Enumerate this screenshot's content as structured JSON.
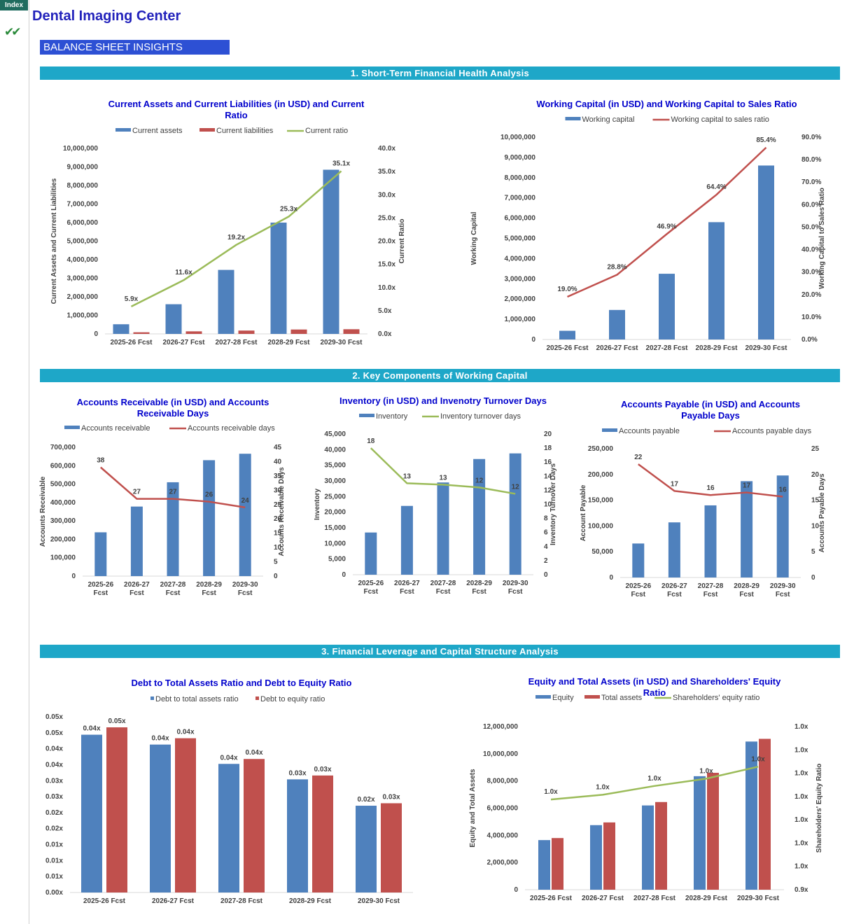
{
  "header": {
    "index_tab": "Index",
    "title": "Dental Imaging Center",
    "check_glyph": "✔✔",
    "section_label": "BALANCE SHEET INSIGHTS"
  },
  "sections": [
    "1. Short-Term Financial Health Analysis",
    "2. Key Components of Working Capital",
    "3. Financial Leverage and Capital Structure Analysis"
  ],
  "colors": {
    "blue": "#4f81bd",
    "red": "#c0504d",
    "green": "#9bbb59",
    "title": "#0000cc",
    "band": "#1ea7c8"
  },
  "chart_data": [
    {
      "id": "c1",
      "type": "bar",
      "title": [
        "Current Assets and Current Liabilities (in USD) and Current",
        "Ratio"
      ],
      "categories": [
        "2025-26 Fcst",
        "2026-27 Fcst",
        "2027-28 Fcst",
        "2028-29 Fcst",
        "2029-30 Fcst"
      ],
      "ylabel": "Current Assets and Current Liabilities",
      "y2label": "Current Ratio",
      "ylim": [
        0,
        10000000
      ],
      "yticks": [
        "0",
        "1,000,000",
        "2,000,000",
        "3,000,000",
        "4,000,000",
        "5,000,000",
        "6,000,000",
        "7,000,000",
        "8,000,000",
        "9,000,000",
        "10,000,000"
      ],
      "y2lim": [
        0,
        40
      ],
      "y2ticks": [
        "0.0x",
        "5.0x",
        "10.0x",
        "15.0x",
        "20.0x",
        "25.0x",
        "30.0x",
        "35.0x",
        "40.0x"
      ],
      "series": [
        {
          "name": "Current assets",
          "type": "bar",
          "axis": "y",
          "color": "#4f81bd",
          "values": [
            520000,
            1600000,
            3450000,
            6000000,
            8850000
          ]
        },
        {
          "name": "Current liabilities",
          "type": "bar",
          "axis": "y",
          "color": "#c0504d",
          "values": [
            88000,
            138000,
            180000,
            237000,
            252000
          ]
        },
        {
          "name": "Current ratio",
          "type": "line",
          "axis": "y2",
          "color": "#9bbb59",
          "values": [
            5.9,
            11.6,
            19.2,
            25.3,
            35.1
          ],
          "labels": [
            "5.9x",
            "11.6x",
            "19.2x",
            "25.3x",
            "35.1x"
          ]
        }
      ]
    },
    {
      "id": "c2",
      "type": "bar",
      "title": [
        "Working Capital (in USD) and Working Capital to Sales Ratio"
      ],
      "categories": [
        "2025-26 Fcst",
        "2026-27 Fcst",
        "2027-28 Fcst",
        "2028-29 Fcst",
        "2029-30 Fcst"
      ],
      "ylabel": "Working Capital",
      "y2label": "Working Capital to Sales Ratio",
      "ylim": [
        0,
        10000000
      ],
      "yticks": [
        "0",
        "1,000,000",
        "2,000,000",
        "3,000,000",
        "4,000,000",
        "5,000,000",
        "6,000,000",
        "7,000,000",
        "8,000,000",
        "9,000,000",
        "10,000,000"
      ],
      "y2lim": [
        0,
        90
      ],
      "y2ticks": [
        "0.0%",
        "10.0%",
        "20.0%",
        "30.0%",
        "40.0%",
        "50.0%",
        "60.0%",
        "70.0%",
        "80.0%",
        "90.0%"
      ],
      "series": [
        {
          "name": "Working capital",
          "type": "bar",
          "axis": "y",
          "color": "#4f81bd",
          "values": [
            430000,
            1460000,
            3250000,
            5800000,
            8600000
          ]
        },
        {
          "name": "Working capital to sales ratio",
          "type": "line",
          "axis": "y2",
          "color": "#c0504d",
          "values": [
            19.0,
            28.8,
            46.9,
            64.4,
            85.4
          ],
          "labels": [
            "19.0%",
            "28.8%",
            "46.9%",
            "64.4%",
            "85.4%"
          ]
        }
      ]
    },
    {
      "id": "c3",
      "type": "bar",
      "title": [
        "Accounts Receivable (in USD) and Accounts",
        "Receivable Days"
      ],
      "categories": [
        "2025-26 Fcst",
        "2026-27 Fcst",
        "2027-28 Fcst",
        "2028-29 Fcst",
        "2029-30 Fcst"
      ],
      "ylabel": "Accounts Receivable",
      "y2label": "Accounts Receivable Days",
      "ylim": [
        0,
        700000
      ],
      "yticks": [
        "0",
        "100,000",
        "200,000",
        "300,000",
        "400,000",
        "500,000",
        "600,000",
        "700,000"
      ],
      "y2lim": [
        0,
        45
      ],
      "y2ticks": [
        "0",
        "5",
        "10",
        "15",
        "20",
        "25",
        "30",
        "35",
        "40",
        "45"
      ],
      "series": [
        {
          "name": "Accounts receivable",
          "type": "bar",
          "axis": "y",
          "color": "#4f81bd",
          "values": [
            238000,
            378000,
            510000,
            630000,
            665000
          ]
        },
        {
          "name": "Accounts receivable days",
          "type": "line",
          "axis": "y2",
          "color": "#c0504d",
          "values": [
            38,
            27,
            27,
            26,
            24
          ],
          "labels": [
            "38",
            "27",
            "27",
            "26",
            "24"
          ]
        }
      ]
    },
    {
      "id": "c4",
      "type": "bar",
      "title": [
        "Inventory (in USD) and Invenotry Turnover Days"
      ],
      "categories": [
        "2025-26 Fcst",
        "2026-27 Fcst",
        "2027-28 Fcst",
        "2028-29 Fcst",
        "2029-30 Fcst"
      ],
      "ylabel": "Inventory",
      "y2label": "Inventory Turnover Days",
      "ylim": [
        0,
        45000
      ],
      "yticks": [
        "0",
        "5,000",
        "10,000",
        "15,000",
        "20,000",
        "25,000",
        "30,000",
        "35,000",
        "40,000",
        "45,000"
      ],
      "y2lim": [
        0,
        20
      ],
      "y2ticks": [
        "0",
        "2",
        "4",
        "6",
        "8",
        "10",
        "12",
        "14",
        "16",
        "18",
        "20"
      ],
      "series": [
        {
          "name": "Inventory",
          "type": "bar",
          "axis": "y",
          "color": "#4f81bd",
          "values": [
            13500,
            22000,
            29500,
            37000,
            38800
          ]
        },
        {
          "name": "Inventory turnover days",
          "type": "line",
          "axis": "y2",
          "color": "#9bbb59",
          "values": [
            18,
            13,
            12.8,
            12.4,
            11.5
          ],
          "labels": [
            "18",
            "13",
            "13",
            "12",
            "12"
          ]
        }
      ]
    },
    {
      "id": "c5",
      "type": "bar",
      "title": [
        "Accounts Payable (in USD) and Accounts",
        "Payable Days"
      ],
      "categories": [
        "2025-26 Fcst",
        "2026-27 Fcst",
        "2027-28 Fcst",
        "2028-29 Fcst",
        "2029-30 Fcst"
      ],
      "ylabel": "Account Payable",
      "y2label": "Accounts Payable Days",
      "ylim": [
        0,
        250000
      ],
      "yticks": [
        "0",
        "50,000",
        "100,000",
        "150,000",
        "200,000",
        "250,000"
      ],
      "y2lim": [
        0,
        25
      ],
      "y2ticks": [
        "0",
        "5",
        "10",
        "15",
        "20",
        "25"
      ],
      "series": [
        {
          "name": "Accounts payable",
          "type": "bar",
          "axis": "y",
          "color": "#4f81bd",
          "values": [
            66000,
            107000,
            140000,
            187000,
            198000
          ]
        },
        {
          "name": "Accounts payable days",
          "type": "line",
          "axis": "y2",
          "color": "#c0504d",
          "values": [
            22,
            16.8,
            16,
            16.5,
            15.7
          ],
          "labels": [
            "22",
            "17",
            "16",
            "17",
            "16"
          ]
        }
      ]
    },
    {
      "id": "c6",
      "type": "bar",
      "title": [
        "Debt to Total Assets Ratio and Debt to Equity Ratio"
      ],
      "categories": [
        "2025-26 Fcst",
        "2026-27 Fcst",
        "2027-28 Fcst",
        "2028-29 Fcst",
        "2029-30 Fcst"
      ],
      "ylim": [
        0,
        0.05
      ],
      "yticks": [
        "0.00x",
        "0.01x",
        "0.01x",
        "0.01x",
        "0.02x",
        "0.02x",
        "0.03x",
        "0.03x",
        "0.04x",
        "0.04x",
        "0.05x",
        "0.05x"
      ],
      "series": [
        {
          "name": "Debt to total assets ratio",
          "type": "bar",
          "axis": "y",
          "color": "#4f81bd",
          "values": [
            0.0449,
            0.0421,
            0.0366,
            0.0322,
            0.0247
          ],
          "labels": [
            "0.04x",
            "0.04x",
            "0.04x",
            "0.03x",
            "0.02x"
          ]
        },
        {
          "name": "Debt to equity ratio",
          "type": "bar",
          "axis": "y",
          "color": "#c0504d",
          "values": [
            0.047,
            0.0439,
            0.038,
            0.0333,
            0.0254
          ],
          "labels": [
            "0.05x",
            "0.04x",
            "0.04x",
            "0.03x",
            "0.03x"
          ]
        }
      ]
    },
    {
      "id": "c7",
      "type": "bar",
      "title": [
        "Equity and Total Assets (in USD) and Shareholders' Equity",
        "Ratio"
      ],
      "categories": [
        "2025-26 Fcst",
        "2026-27 Fcst",
        "2027-28 Fcst",
        "2028-29 Fcst",
        "2029-30 Fcst"
      ],
      "ylabel": "Equity and Total Assets",
      "y2label": "Shareholders' Equity  Ratio",
      "ylim": [
        0,
        12000000
      ],
      "yticks": [
        "0",
        "2,000,000",
        "4,000,000",
        "6,000,000",
        "8,000,000",
        "10,000,000",
        "12,000,000"
      ],
      "y2lim": [
        0.9,
        1.0
      ],
      "y2ticks": [
        "0.9x",
        "1.0x",
        "1.0x",
        "1.0x",
        "1.0x",
        "1.0x",
        "1.0x",
        "1.0x"
      ],
      "series": [
        {
          "name": "Equity",
          "type": "bar",
          "axis": "y",
          "color": "#4f81bd",
          "values": [
            3650000,
            4750000,
            6200000,
            8350000,
            10900000
          ]
        },
        {
          "name": "Total assets",
          "type": "bar",
          "axis": "y",
          "color": "#c0504d",
          "values": [
            3800000,
            4950000,
            6450000,
            8600000,
            11100000
          ]
        },
        {
          "name": "Shareholders' equity ratio",
          "type": "line",
          "axis": "y2",
          "color": "#9bbb59",
          "values": [
            0.9553,
            0.9582,
            0.9636,
            0.9681,
            0.9754
          ],
          "labels": [
            "1.0x",
            "1.0x",
            "1.0x",
            "1.0x",
            "1.0x"
          ]
        }
      ]
    }
  ]
}
